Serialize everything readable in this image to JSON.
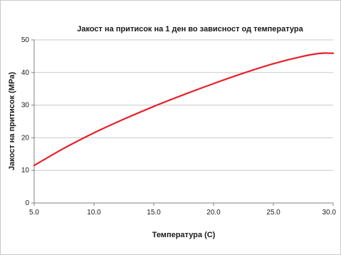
{
  "chart_data": {
    "type": "line",
    "title": "Јакост на притисок на 1 ден во зависност од температура",
    "xlabel": "Температура (C)",
    "ylabel": "Јакост на притисок (MPa)",
    "xlim": [
      5.0,
      30.0
    ],
    "ylim": [
      0,
      50
    ],
    "x_ticks": [
      "5.0",
      "10.0",
      "15.0",
      "20.0",
      "25.0",
      "30.0"
    ],
    "y_ticks": [
      "0",
      "10",
      "20",
      "30",
      "40",
      "50"
    ],
    "grid": true,
    "legend": "none",
    "colors": {
      "line": "#e8202a",
      "grid": "#c8c8c8",
      "axis": "#808080"
    },
    "series": [
      {
        "x": [
          5,
          7.5,
          10,
          12.5,
          15,
          17.5,
          20,
          22.5,
          25,
          27.5,
          29,
          30
        ],
        "y": [
          11.5,
          16.8,
          21.5,
          25.7,
          29.6,
          33.2,
          36.6,
          39.8,
          42.7,
          45,
          45.9,
          45.9
        ]
      }
    ]
  }
}
